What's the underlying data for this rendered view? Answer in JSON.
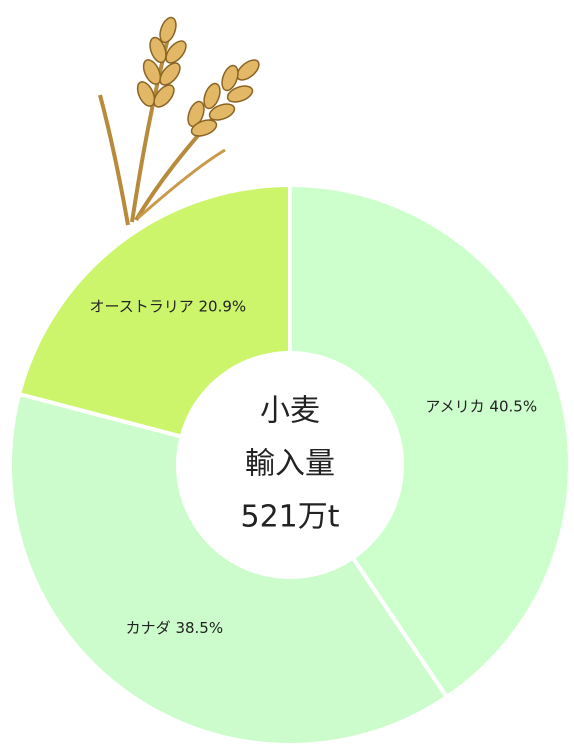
{
  "chart_data": {
    "type": "donut",
    "categories": [
      "アメリカ",
      "カナダ",
      "オーストラリア"
    ],
    "values": [
      40.5,
      38.5,
      20.9
    ],
    "value_labels": [
      "40.5%",
      "38.5%",
      "20.9%"
    ],
    "colors": [
      "#ccffcc",
      "#ccfccc",
      "#ccf56c"
    ],
    "center_label": [
      "小麦",
      "輸入量",
      "521万t"
    ]
  }
}
